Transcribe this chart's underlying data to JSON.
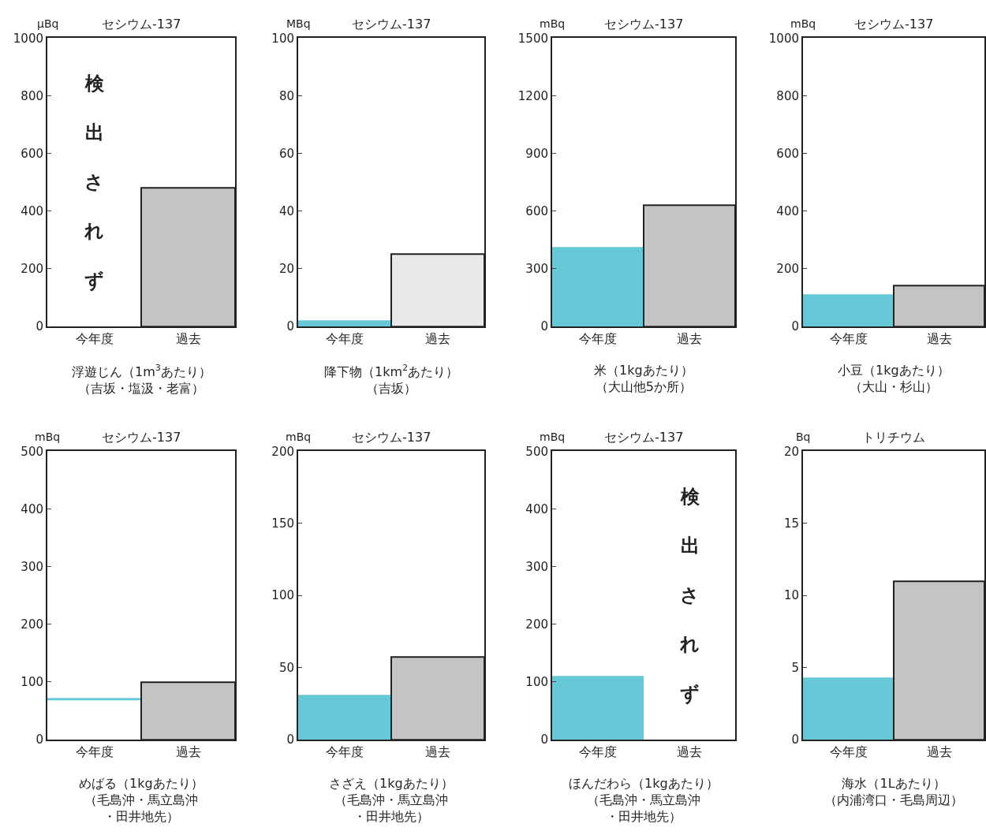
{
  "chart_data": [
    {
      "type": "bar",
      "title": "セシウム-137",
      "ylabel": "μBq",
      "xlabel": "浮遊じん（1m$^{3}$あたり）（吉坂・塩汲・老富）",
      "categories": [
        "今年度",
        "過去"
      ],
      "values": [
        null,
        480
      ],
      "colors": [
        "#66c9d8",
        "#c4c4c4"
      ],
      "ylim": [
        0,
        1000
      ],
      "yticks": [
        0,
        200,
        400,
        600,
        800,
        1000
      ],
      "annotations": [
        "検出されず"
      ]
    },
    {
      "type": "bar",
      "title": "セシウム-137",
      "ylabel": "MBq",
      "xlabel": "降下物（1km$^{2}$あたり）（吉坂）",
      "categories": [
        "今年度",
        "過去"
      ],
      "values": [
        2,
        25
      ],
      "colors": [
        "#66c9d8",
        "#e8e8e8"
      ],
      "ylim": [
        0,
        100
      ],
      "yticks": [
        0,
        20,
        40,
        60,
        80,
        100
      ]
    },
    {
      "type": "bar",
      "title": "セシウム-137",
      "ylabel": "mBq",
      "xlabel": "米（1kgあたり）（大山他5か所）",
      "categories": [
        "今年度",
        "過去"
      ],
      "values": [
        415,
        630
      ],
      "colors": [
        "#66c9d8",
        "#c4c4c4"
      ],
      "ylim": [
        0,
        1500
      ],
      "yticks": [
        0,
        300,
        600,
        900,
        1200,
        1500
      ]
    },
    {
      "type": "bar",
      "title": "セシウム-137",
      "ylabel": "mBq",
      "xlabel": "小豆（1kgあたり）（大山・杉山）",
      "categories": [
        "今年度",
        "過去"
      ],
      "values": [
        110,
        140
      ],
      "colors": [
        "#66c9d8",
        "#c4c4c4"
      ],
      "ylim": [
        0,
        1000
      ],
      "yticks": [
        0,
        200,
        400,
        600,
        800,
        1000
      ]
    },
    {
      "type": "bar",
      "title": "セシウム-137",
      "ylabel": "mBq",
      "xlabel": "めばる（1kgあたり）（毛島沖・馬立島沖・田井地先）",
      "categories": [
        "今年度",
        "過去"
      ],
      "values": [
        4,
        100
      ],
      "base": [
        68,
        0
      ],
      "colors": [
        "#66c9d8",
        "#c4c4c4"
      ],
      "ylim": [
        0,
        500
      ],
      "yticks": [
        0,
        100,
        200,
        300,
        400,
        500
      ]
    },
    {
      "type": "bar",
      "title": "セシウム-137",
      "ylabel": "mBq",
      "xlabel": "さざえ（1kgあたり）（毛島沖・馬立島沖・田井地先）",
      "categories": [
        "今年度",
        "過去"
      ],
      "values": [
        31,
        57
      ],
      "colors": [
        "#66c9d8",
        "#c4c4c4"
      ],
      "ylim": [
        0,
        200
      ],
      "yticks": [
        0,
        50,
        100,
        150,
        200
      ]
    },
    {
      "type": "bar",
      "title": "セシウム-137",
      "ylabel": "mBq",
      "xlabel": "ほんだわら（1kgあたり）（毛島沖・馬立島沖・田井地先）",
      "categories": [
        "今年度",
        "過去"
      ],
      "values": [
        110,
        null
      ],
      "colors": [
        "#66c9d8",
        "#c4c4c4"
      ],
      "ylim": [
        0,
        500
      ],
      "yticks": [
        0,
        100,
        200,
        300,
        400,
        500
      ],
      "annotations": [
        "検出されず"
      ]
    },
    {
      "type": "bar",
      "title": "トリチウム",
      "ylabel": "Bq",
      "xlabel": "海水（1Lあたり）（内浦湾口・毛島周辺）",
      "categories": [
        "今年度",
        "過去"
      ],
      "values": [
        4.3,
        11
      ],
      "colors": [
        "#66c9d8",
        "#c4c4c4"
      ],
      "ylim": [
        0,
        20
      ],
      "yticks": [
        0,
        5,
        10,
        15,
        20
      ]
    }
  ]
}
